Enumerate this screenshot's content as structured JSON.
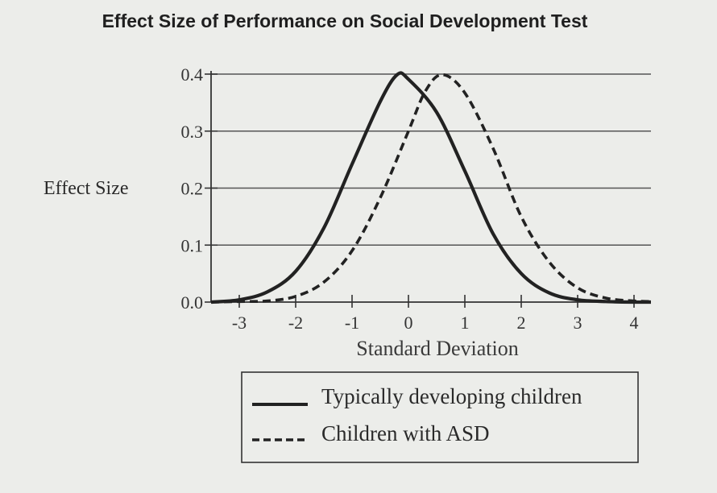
{
  "chart_data": {
    "type": "line",
    "title": "Effect Size of Performance on Social Development Test",
    "xlabel": "Standard Deviation",
    "ylabel": "Effect Size",
    "xlim": [
      -3.5,
      4.3
    ],
    "ylim": [
      0,
      0.4
    ],
    "x_ticks": [
      "-3",
      "-2",
      "-1",
      "0",
      "1",
      "2",
      "3",
      "4"
    ],
    "x_tick_values": [
      -3,
      -2,
      -1,
      0,
      1,
      2,
      3,
      4
    ],
    "y_ticks": [
      "0.0",
      "0.1",
      "0.2",
      "0.3",
      "0.4"
    ],
    "y_tick_values": [
      0,
      0.1,
      0.2,
      0.3,
      0.4
    ],
    "grid": "horizontal",
    "legend_position": "bottom",
    "series": [
      {
        "name": "Typically developing children",
        "style": "solid",
        "color": "#222222",
        "x": [
          -3.5,
          -3,
          -2.5,
          -2,
          -1.5,
          -1,
          -0.5,
          -0.2,
          0,
          0.5,
          1,
          1.5,
          2,
          2.5,
          3,
          3.5,
          4,
          4.3
        ],
        "y": [
          0.0,
          0.004,
          0.018,
          0.054,
          0.13,
          0.242,
          0.352,
          0.399,
          0.391,
          0.333,
          0.23,
          0.12,
          0.05,
          0.016,
          0.004,
          0.001,
          0.0,
          0.0
        ]
      },
      {
        "name": "Children with ASD",
        "style": "dashed",
        "color": "#222222",
        "x": [
          -3.5,
          -3,
          -2.5,
          -2,
          -1.5,
          -1,
          -0.5,
          0,
          0.3,
          0.6,
          1,
          1.5,
          2,
          2.5,
          3,
          3.5,
          4,
          4.3
        ],
        "y": [
          0.0,
          0.001,
          0.002,
          0.01,
          0.035,
          0.09,
          0.183,
          0.3,
          0.37,
          0.399,
          0.367,
          0.27,
          0.15,
          0.07,
          0.025,
          0.007,
          0.002,
          0.001
        ]
      }
    ]
  }
}
